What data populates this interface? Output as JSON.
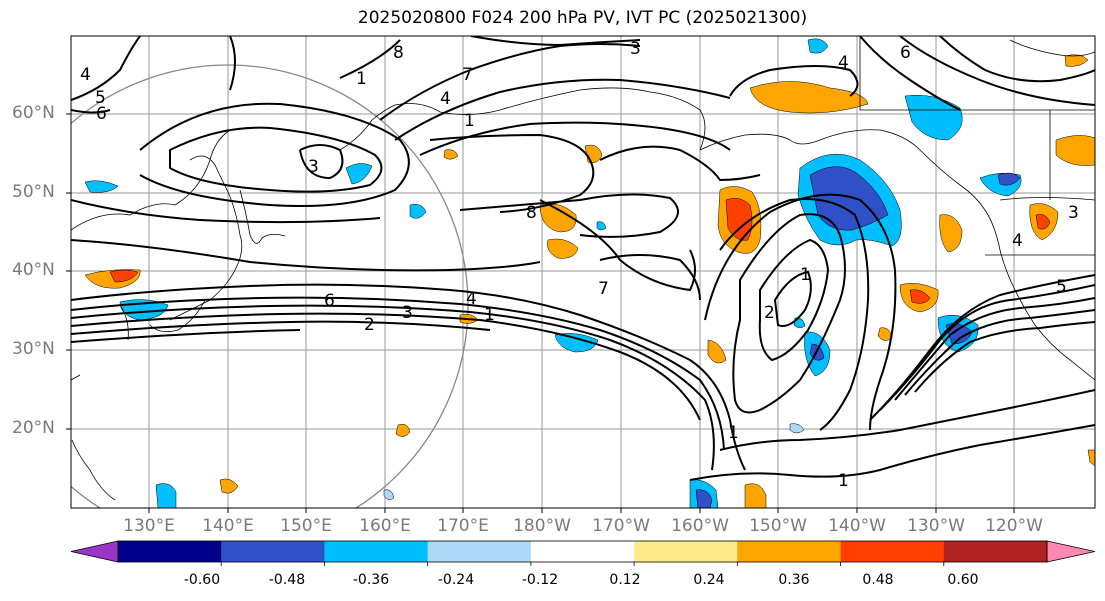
{
  "title": "2025020800 F024 200 hPa PV, IVT PC (2025021300)",
  "lat_labels": [
    "60°N",
    "50°N",
    "40°N",
    "30°N",
    "20°N"
  ],
  "lon_labels": [
    "130°E",
    "140°E",
    "150°E",
    "160°E",
    "170°E",
    "180°W",
    "170°W",
    "160°W",
    "150°W",
    "140°W",
    "130°W",
    "120°W"
  ],
  "contour_labels": [
    "3",
    "4",
    "8",
    "5",
    "6",
    "1",
    "4",
    "3",
    "1",
    "7",
    "8",
    "6",
    "4",
    "3",
    "2",
    "1",
    "2",
    "7",
    "1",
    "4",
    "5",
    "1",
    "4",
    "3",
    "1",
    "6"
  ],
  "colorbar": {
    "ticks": [
      "-0.60",
      "-0.48",
      "-0.36",
      "-0.24",
      "-0.12",
      "0.12",
      "0.24",
      "0.36",
      "0.48",
      "0.60"
    ],
    "colors": [
      "#9a35c8",
      "#00008b",
      "#3050c8",
      "#00bfff",
      "#add8f5",
      "#ffffff",
      "#ffeb8a",
      "#ffa500",
      "#ff4000",
      "#b22222",
      "#ff88b0"
    ]
  }
}
